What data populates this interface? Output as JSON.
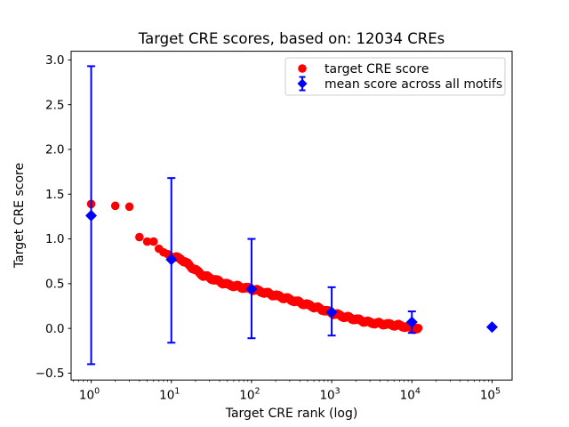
{
  "chart_data": {
    "type": "scatter",
    "title": "Target CRE scores, based on: 12034 CREs",
    "xlabel": "Target CRE rank (log)",
    "ylabel": "Target CRE score",
    "x_scale": "log",
    "xlim_log10": [
      -0.25,
      5.25
    ],
    "ylim": [
      -0.577,
      3.097
    ],
    "x_tick_exponents": [
      0,
      1,
      2,
      3,
      4,
      5
    ],
    "y_ticks": [
      -0.5,
      0.0,
      0.5,
      1.0,
      1.5,
      2.0,
      2.5,
      3.0
    ],
    "grid": false,
    "background": "#ffffff",
    "colors": {
      "target": "#ff0000",
      "mean": "#0000ff",
      "spine": "#000000",
      "legend_border": "#cccccc"
    },
    "series": [
      {
        "name": "target CRE score",
        "type": "scatter-dense",
        "color": "#ff0000",
        "n_points": 12034,
        "anchors": [
          [
            1,
            1.39
          ],
          [
            2,
            1.37
          ],
          [
            3,
            1.36
          ],
          [
            4,
            1.02
          ],
          [
            5,
            0.97
          ],
          [
            6,
            0.97
          ],
          [
            7,
            0.89
          ],
          [
            8,
            0.85
          ],
          [
            9,
            0.83
          ],
          [
            10,
            0.8
          ],
          [
            13,
            0.78
          ],
          [
            17,
            0.7
          ],
          [
            24,
            0.6
          ],
          [
            28,
            0.575
          ],
          [
            50,
            0.49
          ],
          [
            100,
            0.44
          ],
          [
            260,
            0.34
          ],
          [
            660,
            0.23
          ],
          [
            1300,
            0.14
          ],
          [
            3000,
            0.065
          ],
          [
            7000,
            0.032
          ],
          [
            12034,
            -0.01
          ]
        ]
      },
      {
        "name": "mean score across all motifs",
        "type": "errorbar",
        "color": "#0000ff",
        "points": [
          {
            "x": 1,
            "y": 1.26,
            "lo": -0.4,
            "hi": 2.93
          },
          {
            "x": 10,
            "y": 0.77,
            "lo": -0.16,
            "hi": 1.68
          },
          {
            "x": 100,
            "y": 0.44,
            "lo": -0.11,
            "hi": 1.0
          },
          {
            "x": 1000,
            "y": 0.18,
            "lo": -0.08,
            "hi": 0.46
          },
          {
            "x": 10000,
            "y": 0.07,
            "lo": -0.05,
            "hi": 0.19
          },
          {
            "x": 100000,
            "y": 0.015,
            "lo": 0.015,
            "hi": 0.015
          }
        ]
      }
    ],
    "legend": {
      "position": "upper right",
      "items": [
        {
          "marker": "circle",
          "label": "target CRE score"
        },
        {
          "marker": "diamond-errorbar",
          "label": "mean score across all motifs"
        }
      ]
    }
  }
}
